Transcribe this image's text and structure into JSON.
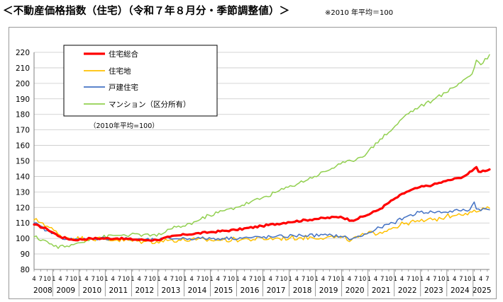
{
  "header": {
    "title": "＜不動産価格指数（住宅）（令和７年８月分・季節調整値）＞",
    "note": "※2010 年平均＝100"
  },
  "chart_data": {
    "type": "line",
    "base_note": "（2010年平均=100）",
    "ylim": [
      80,
      220
    ],
    "yticks": [
      80,
      90,
      100,
      110,
      120,
      130,
      140,
      150,
      160,
      170,
      180,
      190,
      200,
      210,
      220
    ],
    "x_start": "2008-04",
    "x_end": "2025-08",
    "years": [
      "2008",
      "2009",
      "2010",
      "2011",
      "2012",
      "2013",
      "2014",
      "2015",
      "2016",
      "2017",
      "2018",
      "2019",
      "2020",
      "2021",
      "2022",
      "2023",
      "2024",
      "2025"
    ],
    "month_ticks": [
      "4",
      "7",
      "10",
      "1"
    ],
    "grid": true,
    "legend_position": "top-left",
    "series": [
      {
        "name": "住宅総合",
        "color": "#ff0000",
        "keypoints": [
          [
            "2008-04",
            109
          ],
          [
            "2008-10",
            106
          ],
          [
            "2009-04",
            101
          ],
          [
            "2009-10",
            99
          ],
          [
            "2010-06",
            100
          ],
          [
            "2011-06",
            100
          ],
          [
            "2012-06",
            99
          ],
          [
            "2012-12",
            99
          ],
          [
            "2013-06",
            101
          ],
          [
            "2014-01",
            102.5
          ],
          [
            "2014-12",
            104
          ],
          [
            "2015-12",
            105.5
          ],
          [
            "2016-12",
            108
          ],
          [
            "2017-12",
            110.5
          ],
          [
            "2018-12",
            112.5
          ],
          [
            "2019-12",
            114
          ],
          [
            "2020-05",
            111.5
          ],
          [
            "2020-12",
            115
          ],
          [
            "2021-06",
            119
          ],
          [
            "2021-12",
            125
          ],
          [
            "2022-06",
            130
          ],
          [
            "2022-12",
            133
          ],
          [
            "2023-06",
            134.5
          ],
          [
            "2023-12",
            137
          ],
          [
            "2024-06",
            139
          ],
          [
            "2024-09",
            140.5
          ],
          [
            "2024-12",
            143.5
          ],
          [
            "2025-02",
            146
          ],
          [
            "2025-03",
            143
          ],
          [
            "2025-08",
            144.5
          ]
        ],
        "noise": 0.6,
        "width": 3.2
      },
      {
        "name": "住宅地",
        "color": "#ffc000",
        "keypoints": [
          [
            "2008-04",
            112
          ],
          [
            "2008-08",
            110
          ],
          [
            "2009-04",
            102
          ],
          [
            "2009-10",
            100
          ],
          [
            "2010-06",
            100
          ],
          [
            "2011-06",
            99
          ],
          [
            "2012-06",
            98
          ],
          [
            "2012-12",
            98
          ],
          [
            "2013-06",
            99
          ],
          [
            "2014-06",
            99
          ],
          [
            "2015-06",
            99
          ],
          [
            "2016-06",
            99.5
          ],
          [
            "2017-06",
            100
          ],
          [
            "2018-06",
            100.5
          ],
          [
            "2019-06",
            101
          ],
          [
            "2019-12",
            100.5
          ],
          [
            "2020-05",
            99
          ],
          [
            "2020-12",
            103
          ],
          [
            "2021-06",
            104
          ],
          [
            "2021-12",
            107
          ],
          [
            "2022-06",
            110
          ],
          [
            "2022-12",
            111
          ],
          [
            "2023-06",
            112
          ],
          [
            "2023-12",
            114
          ],
          [
            "2024-06",
            116
          ],
          [
            "2024-12",
            117
          ],
          [
            "2025-04",
            118
          ],
          [
            "2025-08",
            119.5
          ]
        ],
        "noise": 1.6,
        "width": 1.5
      },
      {
        "name": "戸建住宅",
        "color": "#4472c4",
        "keypoints": [
          [
            "2008-04",
            110
          ],
          [
            "2008-10",
            105
          ],
          [
            "2009-04",
            101
          ],
          [
            "2009-10",
            99
          ],
          [
            "2010-06",
            100
          ],
          [
            "2011-06",
            100
          ],
          [
            "2012-06",
            99
          ],
          [
            "2012-12",
            99
          ],
          [
            "2013-06",
            100
          ],
          [
            "2014-06",
            100
          ],
          [
            "2015-06",
            100
          ],
          [
            "2016-06",
            100.5
          ],
          [
            "2017-06",
            101
          ],
          [
            "2018-06",
            102
          ],
          [
            "2019-06",
            102
          ],
          [
            "2019-12",
            101.5
          ],
          [
            "2020-05",
            99.5
          ],
          [
            "2020-12",
            103
          ],
          [
            "2021-06",
            107
          ],
          [
            "2021-12",
            110
          ],
          [
            "2022-06",
            114
          ],
          [
            "2022-12",
            117
          ],
          [
            "2023-06",
            117
          ],
          [
            "2023-12",
            117
          ],
          [
            "2024-06",
            118
          ],
          [
            "2024-11",
            118.5
          ],
          [
            "2025-01",
            123.5
          ],
          [
            "2025-02",
            119
          ],
          [
            "2025-08",
            118.5
          ]
        ],
        "noise": 1.1,
        "width": 1.5
      },
      {
        "name": "マンション（区分所有）",
        "color": "#92d050",
        "keypoints": [
          [
            "2008-04",
            101
          ],
          [
            "2008-10",
            98
          ],
          [
            "2009-01",
            95
          ],
          [
            "2009-06",
            94.5
          ],
          [
            "2009-10",
            96
          ],
          [
            "2010-06",
            100
          ],
          [
            "2011-06",
            102
          ],
          [
            "2012-06",
            102.5
          ],
          [
            "2012-12",
            101.5
          ],
          [
            "2013-06",
            106
          ],
          [
            "2013-12",
            108
          ],
          [
            "2014-06",
            111
          ],
          [
            "2014-12",
            115
          ],
          [
            "2015-12",
            120
          ],
          [
            "2016-12",
            126
          ],
          [
            "2017-12",
            133
          ],
          [
            "2018-12",
            140
          ],
          [
            "2019-12",
            148
          ],
          [
            "2020-05",
            150
          ],
          [
            "2020-12",
            155
          ],
          [
            "2021-06",
            164
          ],
          [
            "2021-12",
            171
          ],
          [
            "2022-06",
            180
          ],
          [
            "2022-12",
            185
          ],
          [
            "2023-06",
            189
          ],
          [
            "2023-12",
            194
          ],
          [
            "2024-06",
            200
          ],
          [
            "2024-12",
            206
          ],
          [
            "2025-02",
            215
          ],
          [
            "2025-04",
            212
          ],
          [
            "2025-08",
            218.5
          ]
        ],
        "noise": 1.2,
        "width": 1.5
      }
    ]
  }
}
